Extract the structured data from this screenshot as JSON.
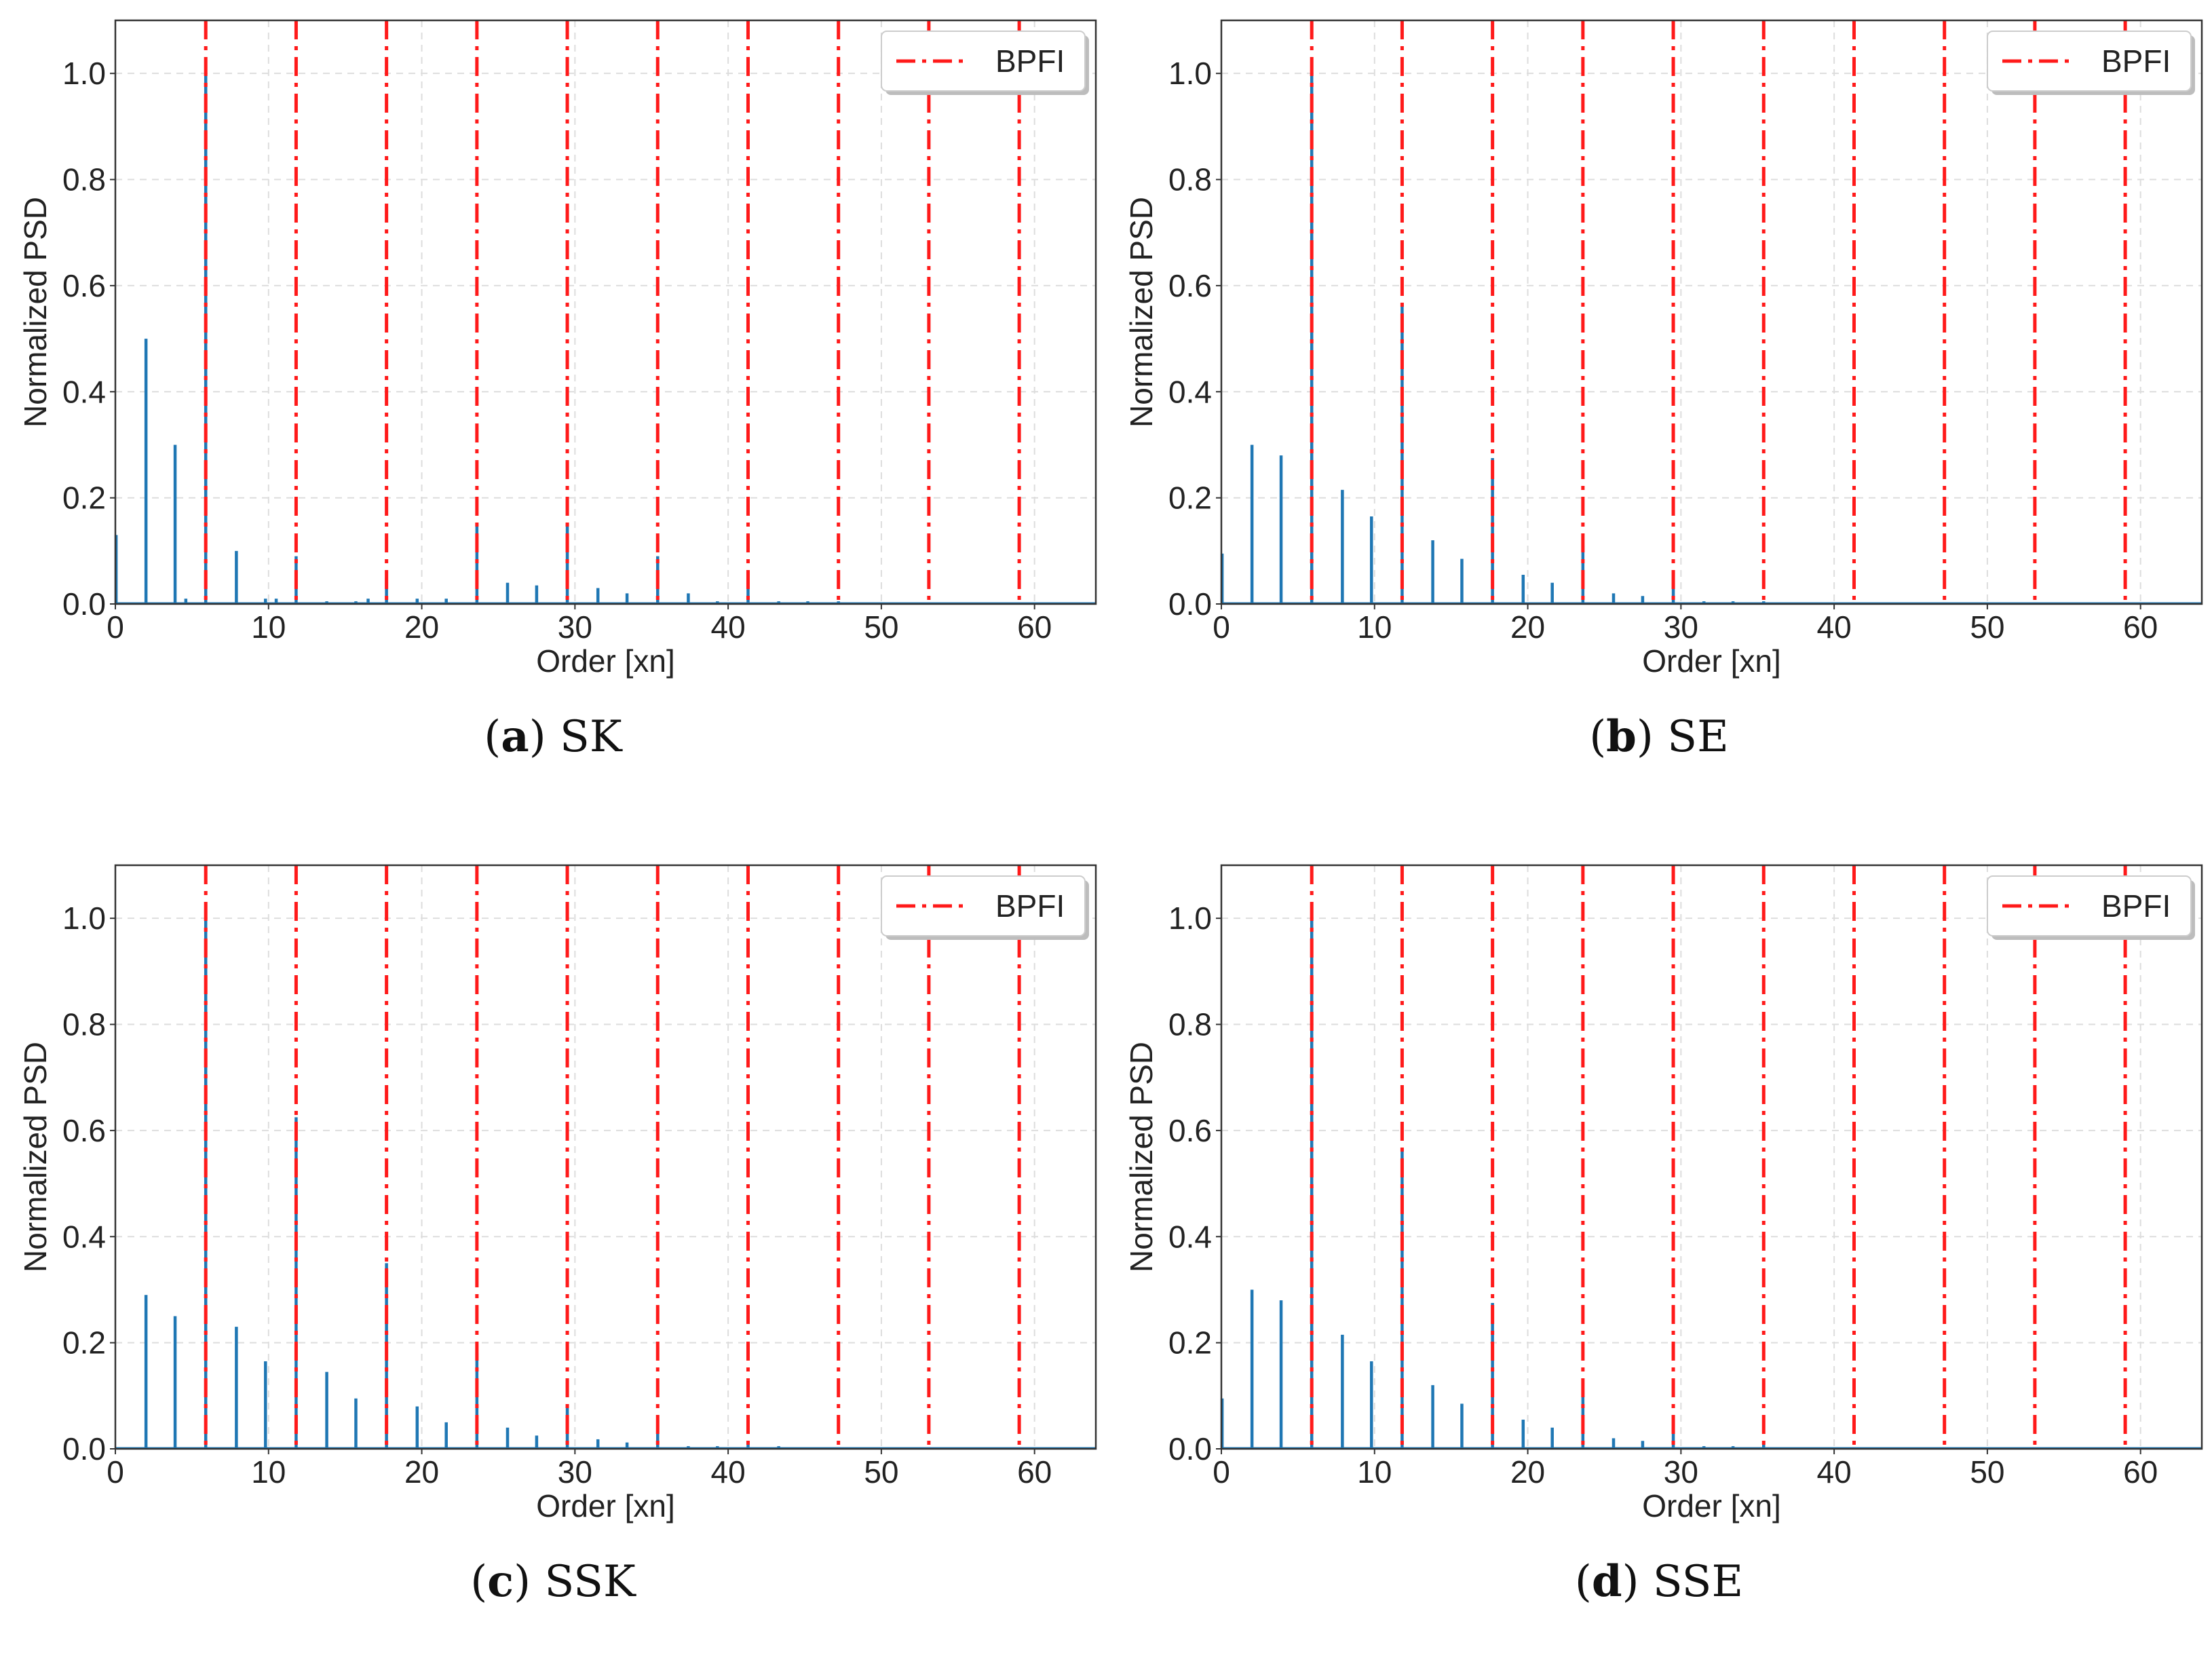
{
  "figure": {
    "series_color": "#1f77b4",
    "marker_color": "#ff1a1a",
    "grid_color": "#dddddd"
  },
  "chart_data": [
    {
      "type": "line",
      "panel_label": "a",
      "caption": "SK",
      "xlabel": "Order [xn]",
      "ylabel": "Normalized PSD",
      "xlim": [
        0,
        64
      ],
      "ylim": [
        0,
        1.1
      ],
      "xticks": [
        "0",
        "10",
        "20",
        "30",
        "40",
        "50",
        "60"
      ],
      "yticks": [
        "0.0",
        "0.2",
        "0.4",
        "0.6",
        "0.8",
        "1.0"
      ],
      "grid": true,
      "legend": {
        "label": "BPFI",
        "position": "top-right"
      },
      "bpfi_lines": [
        5.9,
        11.8,
        17.7,
        23.6,
        29.5,
        35.4,
        41.3,
        47.2,
        53.1,
        59.0
      ],
      "peaks": [
        {
          "x": 0.05,
          "y": 0.13
        },
        {
          "x": 2.0,
          "y": 0.5
        },
        {
          "x": 3.9,
          "y": 0.3
        },
        {
          "x": 4.6,
          "y": 0.01
        },
        {
          "x": 5.9,
          "y": 1.0
        },
        {
          "x": 7.9,
          "y": 0.1
        },
        {
          "x": 9.8,
          "y": 0.01
        },
        {
          "x": 10.5,
          "y": 0.01
        },
        {
          "x": 11.8,
          "y": 0.09
        },
        {
          "x": 13.8,
          "y": 0.005
        },
        {
          "x": 15.7,
          "y": 0.005
        },
        {
          "x": 16.5,
          "y": 0.01
        },
        {
          "x": 17.7,
          "y": 0.05
        },
        {
          "x": 19.7,
          "y": 0.01
        },
        {
          "x": 21.6,
          "y": 0.01
        },
        {
          "x": 23.6,
          "y": 0.15
        },
        {
          "x": 25.6,
          "y": 0.04
        },
        {
          "x": 27.5,
          "y": 0.035
        },
        {
          "x": 29.5,
          "y": 0.15
        },
        {
          "x": 31.5,
          "y": 0.03
        },
        {
          "x": 33.4,
          "y": 0.02
        },
        {
          "x": 35.4,
          "y": 0.09
        },
        {
          "x": 37.4,
          "y": 0.02
        },
        {
          "x": 39.3,
          "y": 0.005
        },
        {
          "x": 41.3,
          "y": 0.04
        },
        {
          "x": 43.3,
          "y": 0.005
        },
        {
          "x": 45.2,
          "y": 0.005
        },
        {
          "x": 47.2,
          "y": 0.005
        }
      ]
    },
    {
      "type": "line",
      "panel_label": "b",
      "caption": "SE",
      "xlabel": "Order [xn]",
      "ylabel": "Normalized PSD",
      "xlim": [
        0,
        64
      ],
      "ylim": [
        0,
        1.1
      ],
      "xticks": [
        "0",
        "10",
        "20",
        "30",
        "40",
        "50",
        "60"
      ],
      "yticks": [
        "0.0",
        "0.2",
        "0.4",
        "0.6",
        "0.8",
        "1.0"
      ],
      "grid": true,
      "legend": {
        "label": "BPFI",
        "position": "top-right"
      },
      "bpfi_lines": [
        5.9,
        11.8,
        17.7,
        23.6,
        29.5,
        35.4,
        41.3,
        47.2,
        53.1,
        59.0
      ],
      "peaks": [
        {
          "x": 0.05,
          "y": 0.095
        },
        {
          "x": 2.0,
          "y": 0.3
        },
        {
          "x": 3.9,
          "y": 0.28
        },
        {
          "x": 5.9,
          "y": 1.0
        },
        {
          "x": 7.9,
          "y": 0.215
        },
        {
          "x": 9.8,
          "y": 0.165
        },
        {
          "x": 11.8,
          "y": 0.565
        },
        {
          "x": 13.8,
          "y": 0.12
        },
        {
          "x": 15.7,
          "y": 0.085
        },
        {
          "x": 17.7,
          "y": 0.275
        },
        {
          "x": 19.7,
          "y": 0.055
        },
        {
          "x": 21.6,
          "y": 0.04
        },
        {
          "x": 23.6,
          "y": 0.11
        },
        {
          "x": 25.6,
          "y": 0.02
        },
        {
          "x": 27.5,
          "y": 0.015
        },
        {
          "x": 29.5,
          "y": 0.04
        },
        {
          "x": 31.5,
          "y": 0.005
        },
        {
          "x": 33.4,
          "y": 0.005
        },
        {
          "x": 35.4,
          "y": 0.005
        }
      ]
    },
    {
      "type": "line",
      "panel_label": "c",
      "caption": "SSK",
      "xlabel": "Order [xn]",
      "ylabel": "Normalized PSD",
      "xlim": [
        0,
        64
      ],
      "ylim": [
        0,
        1.1
      ],
      "xticks": [
        "0",
        "10",
        "20",
        "30",
        "40",
        "50",
        "60"
      ],
      "yticks": [
        "0.0",
        "0.2",
        "0.4",
        "0.6",
        "0.8",
        "1.0"
      ],
      "grid": true,
      "legend": {
        "label": "BPFI",
        "position": "top-right"
      },
      "bpfi_lines": [
        5.9,
        11.8,
        17.7,
        23.6,
        29.5,
        35.4,
        41.3,
        47.2,
        53.1,
        59.0
      ],
      "peaks": [
        {
          "x": 2.0,
          "y": 0.29
        },
        {
          "x": 3.9,
          "y": 0.25
        },
        {
          "x": 5.9,
          "y": 1.0
        },
        {
          "x": 7.9,
          "y": 0.23
        },
        {
          "x": 9.8,
          "y": 0.165
        },
        {
          "x": 11.8,
          "y": 0.625
        },
        {
          "x": 13.8,
          "y": 0.145
        },
        {
          "x": 15.7,
          "y": 0.095
        },
        {
          "x": 17.7,
          "y": 0.35
        },
        {
          "x": 19.7,
          "y": 0.08
        },
        {
          "x": 21.6,
          "y": 0.05
        },
        {
          "x": 23.6,
          "y": 0.18
        },
        {
          "x": 25.6,
          "y": 0.04
        },
        {
          "x": 27.5,
          "y": 0.025
        },
        {
          "x": 29.5,
          "y": 0.08
        },
        {
          "x": 31.5,
          "y": 0.018
        },
        {
          "x": 33.4,
          "y": 0.012
        },
        {
          "x": 35.4,
          "y": 0.04
        },
        {
          "x": 37.4,
          "y": 0.005
        },
        {
          "x": 39.3,
          "y": 0.005
        },
        {
          "x": 41.3,
          "y": 0.01
        },
        {
          "x": 43.3,
          "y": 0.005
        },
        {
          "x": 45.2,
          "y": 0.003
        }
      ]
    },
    {
      "type": "line",
      "panel_label": "d",
      "caption": "SSE",
      "xlabel": "Order [xn]",
      "ylabel": "Normalized PSD",
      "xlim": [
        0,
        64
      ],
      "ylim": [
        0,
        1.1
      ],
      "xticks": [
        "0",
        "10",
        "20",
        "30",
        "40",
        "50",
        "60"
      ],
      "yticks": [
        "0.0",
        "0.2",
        "0.4",
        "0.6",
        "0.8",
        "1.0"
      ],
      "grid": true,
      "legend": {
        "label": "BPFI",
        "position": "top-right"
      },
      "bpfi_lines": [
        5.9,
        11.8,
        17.7,
        23.6,
        29.5,
        35.4,
        41.3,
        47.2,
        53.1,
        59.0
      ],
      "peaks": [
        {
          "x": 0.05,
          "y": 0.095
        },
        {
          "x": 2.0,
          "y": 0.3
        },
        {
          "x": 3.9,
          "y": 0.28
        },
        {
          "x": 5.9,
          "y": 1.0
        },
        {
          "x": 7.9,
          "y": 0.215
        },
        {
          "x": 9.8,
          "y": 0.165
        },
        {
          "x": 11.8,
          "y": 0.565
        },
        {
          "x": 13.8,
          "y": 0.12
        },
        {
          "x": 15.7,
          "y": 0.085
        },
        {
          "x": 17.7,
          "y": 0.275
        },
        {
          "x": 19.7,
          "y": 0.055
        },
        {
          "x": 21.6,
          "y": 0.04
        },
        {
          "x": 23.6,
          "y": 0.11
        },
        {
          "x": 25.6,
          "y": 0.02
        },
        {
          "x": 27.5,
          "y": 0.015
        },
        {
          "x": 29.5,
          "y": 0.04
        },
        {
          "x": 31.5,
          "y": 0.005
        },
        {
          "x": 33.4,
          "y": 0.005
        },
        {
          "x": 35.4,
          "y": 0.015
        }
      ]
    }
  ]
}
